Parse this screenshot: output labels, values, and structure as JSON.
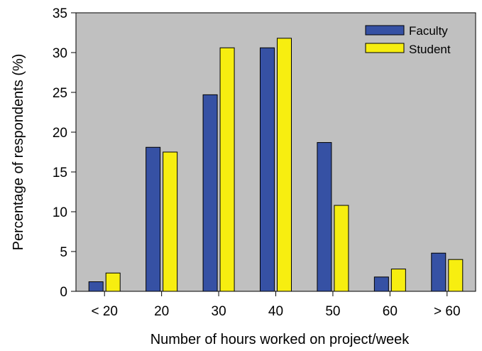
{
  "chart_data": {
    "type": "bar",
    "title": "",
    "xlabel": "Number of hours worked on project/week",
    "ylabel": "Percentage of respondents (%)",
    "categories": [
      "< 20",
      "20",
      "30",
      "40",
      "50",
      "60",
      "> 60"
    ],
    "series": [
      {
        "name": "Faculty",
        "color": "#3651A4",
        "values": [
          1.2,
          18.1,
          24.7,
          30.6,
          18.7,
          1.8,
          4.8
        ]
      },
      {
        "name": "Student",
        "color": "#F7EE10",
        "values": [
          2.3,
          17.5,
          30.6,
          31.8,
          10.8,
          2.8,
          4.0
        ]
      }
    ],
    "ylim": [
      0,
      35
    ],
    "yticks": [
      "0",
      "5",
      "10",
      "15",
      "20",
      "25",
      "30",
      "35"
    ],
    "grid": false,
    "legend": "top-right",
    "background_color": "#C0C0C0"
  }
}
